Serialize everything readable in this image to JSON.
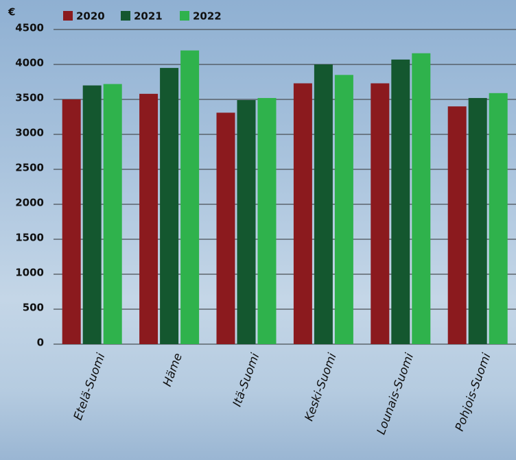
{
  "chart_data": {
    "type": "bar",
    "y_label": "€",
    "categories": [
      "Etelä-Suomi",
      "Häme",
      "Itä-Suomi",
      "Keski-Suomi",
      "Lounais-Suomi",
      "Pohjois-Suomi"
    ],
    "series": [
      {
        "name": "2020",
        "color": "#8b1a1e",
        "values": [
          3500,
          3580,
          3310,
          3730,
          3730,
          3400
        ]
      },
      {
        "name": "2021",
        "color": "#14572f",
        "values": [
          3700,
          3950,
          3490,
          4000,
          4070,
          3520
        ]
      },
      {
        "name": "2022",
        "color": "#2fb24c",
        "values": [
          3720,
          4200,
          3520,
          3850,
          4160,
          3590
        ]
      }
    ],
    "ylim": [
      0,
      4500
    ],
    "yticks": [
      0,
      500,
      1000,
      1500,
      2000,
      2500,
      3000,
      3500,
      4000,
      4500
    ],
    "grid": true
  }
}
